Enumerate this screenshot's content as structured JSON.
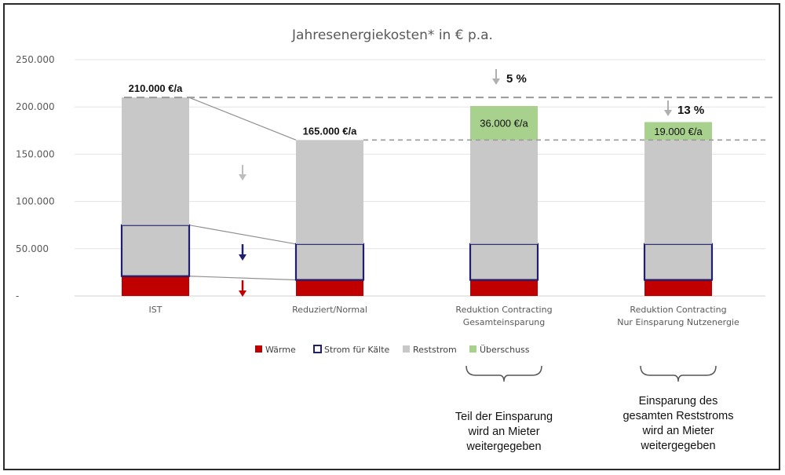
{
  "chart_data": {
    "type": "bar",
    "stacked": true,
    "title": "Jahresenergiekosten* in € p.a.",
    "ylim": [
      0,
      250000
    ],
    "yticks": [
      "-",
      "50.000",
      "100.000",
      "150.000",
      "200.000",
      "250.000"
    ],
    "ytick_values": [
      0,
      50000,
      100000,
      150000,
      200000,
      250000
    ],
    "grid": true,
    "legend_position": "bottom",
    "categories": [
      [
        "IST"
      ],
      [
        "Reduziert/Normal"
      ],
      [
        "Reduktion Contracting",
        "Gesamteinsparung"
      ],
      [
        "Reduktion Contracting",
        "Nur Einsparung Nutzenergie"
      ]
    ],
    "series": [
      {
        "name": "Wärme",
        "color": "#c00000",
        "values": [
          21000,
          17000,
          17000,
          17000
        ]
      },
      {
        "name": "Strom für Kälte",
        "color": "#1f1f6e",
        "values": [
          54000,
          38000,
          38000,
          38000
        ]
      },
      {
        "name": "Reststrom",
        "color": "#c8c8c8",
        "values": [
          135000,
          110000,
          110000,
          110000
        ]
      },
      {
        "name": "Überschuss",
        "color": "#a9d18e",
        "values": [
          0,
          0,
          36000,
          19000
        ]
      }
    ],
    "data_labels": [
      {
        "bar": 0,
        "text": "210.000 €/a",
        "kind": "total"
      },
      {
        "bar": 1,
        "text": "165.000 €/a",
        "kind": "total"
      },
      {
        "bar": 2,
        "text": "36.000 €/a",
        "kind": "segment"
      },
      {
        "bar": 3,
        "text": "19.000 €/a",
        "kind": "segment"
      }
    ],
    "reference_lines": [
      210000,
      165000
    ],
    "percent_annotations": [
      {
        "bar": 2,
        "text": "5 %"
      },
      {
        "bar": 3,
        "text": "13 %"
      }
    ]
  },
  "notes": [
    {
      "bar": 2,
      "lines": [
        "Teil der Einsparung",
        "wird an Mieter",
        "weitergegeben"
      ]
    },
    {
      "bar": 3,
      "lines": [
        "Einsparung des",
        "gesamten Reststroms",
        "wird an Mieter",
        "weitergegeben"
      ]
    }
  ]
}
